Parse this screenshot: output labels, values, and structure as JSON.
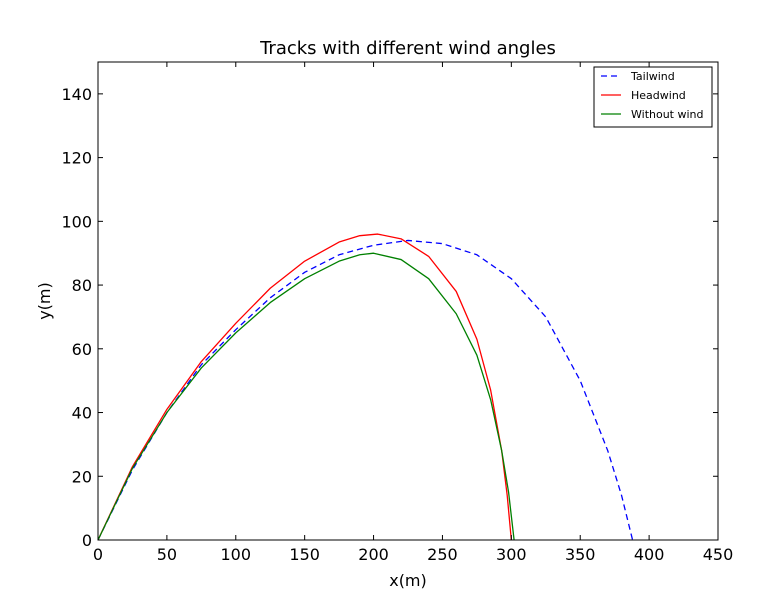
{
  "chart_data": {
    "type": "line",
    "title": "Tracks with different wind angles",
    "xlabel": "x(m)",
    "ylabel": "y(m)",
    "xlim": [
      0,
      450
    ],
    "ylim": [
      0,
      150
    ],
    "xticks": [
      0,
      50,
      100,
      150,
      200,
      250,
      300,
      350,
      400,
      450
    ],
    "yticks": [
      0,
      20,
      40,
      60,
      80,
      100,
      120,
      140
    ],
    "grid": false,
    "legend": "top-right",
    "series": [
      {
        "name": "Tailwind",
        "color": "#0000ff",
        "dash": "dashed",
        "x": [
          0,
          25,
          50,
          75,
          100,
          125,
          150,
          175,
          200,
          225,
          250,
          275,
          300,
          325,
          350,
          370,
          380,
          388
        ],
        "y": [
          0,
          22,
          40,
          55,
          66,
          76,
          84,
          89.5,
          92.5,
          94,
          93,
          89.5,
          82,
          70,
          50,
          28,
          14,
          0
        ]
      },
      {
        "name": "Headwind",
        "color": "#ff0000",
        "dash": "solid",
        "x": [
          0,
          25,
          50,
          75,
          100,
          125,
          150,
          175,
          190,
          203,
          220,
          240,
          260,
          275,
          285,
          293,
          297,
          300
        ],
        "y": [
          0,
          23,
          41,
          56,
          68,
          79,
          87.5,
          93.5,
          95.5,
          96,
          94.5,
          89,
          78,
          63,
          47,
          28,
          14,
          0
        ]
      },
      {
        "name": "Without wind",
        "color": "#008000",
        "dash": "solid",
        "x": [
          0,
          25,
          50,
          75,
          100,
          125,
          150,
          175,
          190,
          200,
          220,
          240,
          260,
          275,
          285,
          293,
          298,
          302
        ],
        "y": [
          0,
          22.5,
          40,
          54,
          65,
          74.5,
          82,
          87.5,
          89.5,
          90,
          88,
          82,
          71,
          58,
          44,
          28,
          15,
          0
        ]
      }
    ]
  }
}
